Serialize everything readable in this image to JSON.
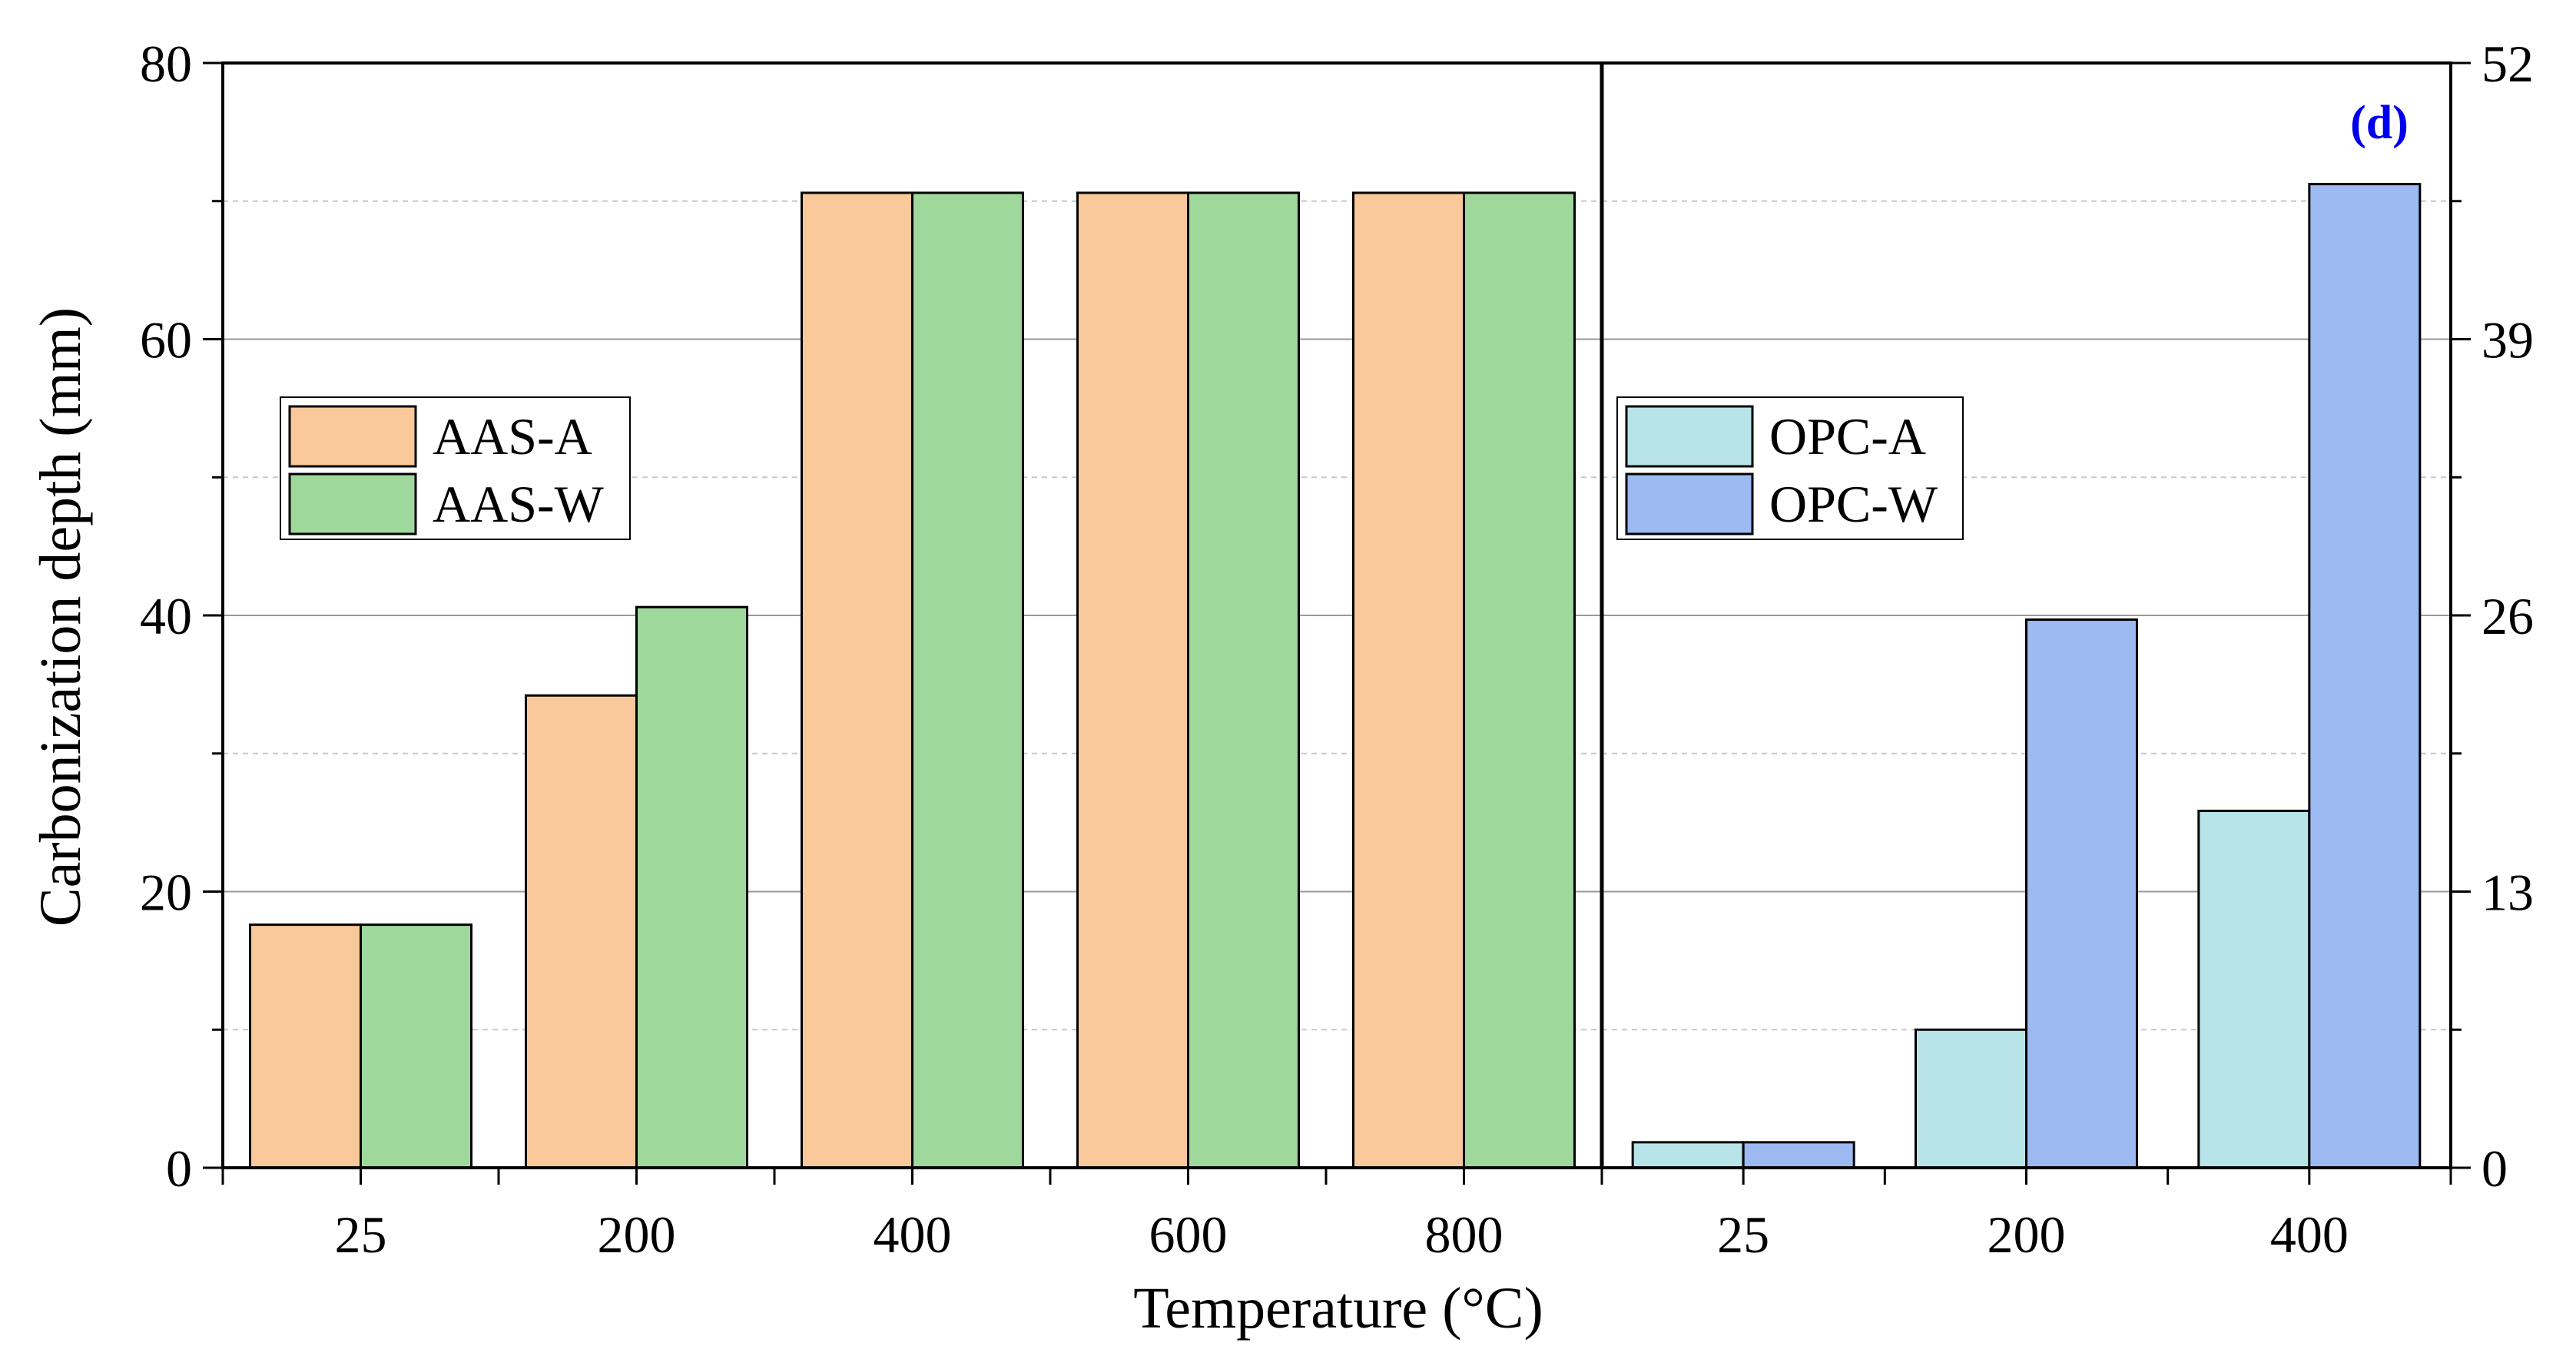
{
  "panel_label": "(d)",
  "x_axis_title": "Temperature (°C)",
  "y_axis_title": "Carbonization depth (mm)",
  "chart_data": [
    {
      "type": "bar",
      "name": "AAS",
      "categories": [
        "25",
        "200",
        "400",
        "600",
        "800"
      ],
      "series": [
        {
          "name": "AAS-A",
          "color": "#F9C89B",
          "values": [
            17.6,
            34.2,
            70.6,
            70.6,
            70.6
          ]
        },
        {
          "name": "AAS-W",
          "color": "#9ED89A",
          "values": [
            17.6,
            40.6,
            70.6,
            70.6,
            70.6
          ]
        }
      ],
      "ylabel": "Carbonization depth (mm)",
      "ylim": [
        0,
        80
      ],
      "yticks": [
        "0",
        "20",
        "40",
        "60",
        "80"
      ],
      "axis_side": "left",
      "legend_position": "upper-left",
      "grid": true
    },
    {
      "type": "bar",
      "name": "OPC",
      "categories": [
        "25",
        "200",
        "400"
      ],
      "series": [
        {
          "name": "OPC-A",
          "color": "#B7E4E8",
          "values": [
            1.2,
            6.5,
            16.8
          ]
        },
        {
          "name": "OPC-W",
          "color": "#9DB9F2",
          "values": [
            1.2,
            25.8,
            46.3
          ]
        }
      ],
      "ylabel": "",
      "ylim": [
        0,
        52
      ],
      "yticks": [
        "0",
        "13",
        "26",
        "39",
        "52"
      ],
      "axis_side": "right",
      "legend_position": "upper-left",
      "grid": true
    }
  ]
}
